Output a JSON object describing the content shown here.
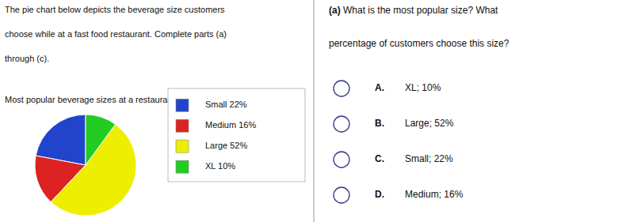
{
  "chart_data": {
    "type": "pie",
    "title": "Most popular beverage sizes at a restaurant",
    "categories": [
      "Small 22%",
      "Medium 16%",
      "Large 52%",
      "XL 10%"
    ],
    "values": [
      22,
      16,
      52,
      10
    ],
    "colors": [
      "#2244cc",
      "#dd2222",
      "#eeee00",
      "#22cc22"
    ],
    "legend": "right",
    "annotations": [
      "The pie chart below depicts the beverage size customers",
      "choose while at a fast food restaurant. Complete parts (a)",
      "through (c).",
      "(a)",
      " What is the most popular size? What",
      "percentage of customers choose this size?",
      "A.",
      "XL; 10%",
      "B.",
      "Large; 52%",
      "C.",
      "Small; 22%",
      "D.",
      "Medium; 16%"
    ]
  }
}
